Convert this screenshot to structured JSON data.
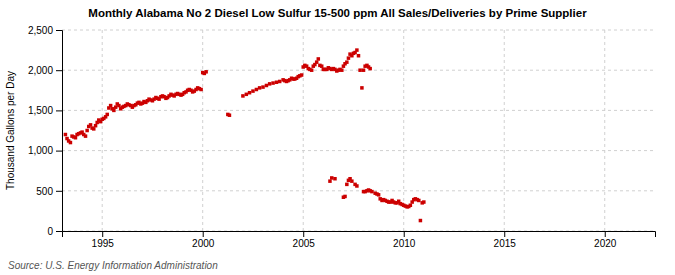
{
  "chart_data": {
    "type": "scatter",
    "title": "Monthly Alabama No 2 Diesel Low Sulfur 15-500 ppm All Sales/Deliveries by Prime Supplier",
    "ylabel": "Thousand Gallons per Day",
    "annotation": "Source: U.S. Energy Information Administration",
    "grid": true,
    "xlim": [
      1993.0,
      2022.5
    ],
    "xticks": [
      1995,
      2000,
      2005,
      2010,
      2015,
      2020
    ],
    "ylim": [
      0,
      2500
    ],
    "yticks": [
      0,
      500,
      {
        "value": 1000,
        "label": "1,000"
      },
      {
        "value": 1500,
        "label": "1,500"
      },
      {
        "value": 2000,
        "label": "2,000"
      },
      {
        "value": 2500,
        "label": "2,500"
      }
    ],
    "series": [
      {
        "color": "#cc0000",
        "marker": "square",
        "x": [
          1993.17,
          1993.25,
          1993.33,
          1993.42,
          1993.5,
          1993.58,
          1993.67,
          1993.75,
          1993.83,
          1993.92,
          1994.0,
          1994.08,
          1994.17,
          1994.25,
          1994.33,
          1994.42,
          1994.5,
          1994.58,
          1994.67,
          1994.75,
          1994.83,
          1994.92,
          1995.0,
          1995.08,
          1995.17,
          1995.25,
          1995.33,
          1995.42,
          1995.5,
          1995.58,
          1995.67,
          1995.75,
          1995.83,
          1995.92,
          1996.0,
          1996.08,
          1996.17,
          1996.25,
          1996.33,
          1996.42,
          1996.5,
          1996.58,
          1996.67,
          1996.75,
          1996.83,
          1996.92,
          1997.0,
          1997.08,
          1997.17,
          1997.25,
          1997.33,
          1997.42,
          1997.5,
          1997.58,
          1997.67,
          1997.75,
          1997.83,
          1997.92,
          1998.0,
          1998.08,
          1998.17,
          1998.25,
          1998.33,
          1998.42,
          1998.5,
          1998.58,
          1998.67,
          1998.75,
          1998.83,
          1998.92,
          1999.0,
          1999.08,
          1999.17,
          1999.25,
          1999.33,
          1999.42,
          1999.5,
          1999.58,
          1999.67,
          1999.75,
          1999.83,
          1999.92,
          2000.0,
          2000.08,
          2000.17,
          2001.25,
          2001.33,
          2002.0,
          2002.17,
          2002.33,
          2002.5,
          2002.67,
          2002.83,
          2003.0,
          2003.17,
          2003.33,
          2003.5,
          2003.67,
          2003.83,
          2004.0,
          2004.08,
          2004.17,
          2004.25,
          2004.33,
          2004.42,
          2004.5,
          2004.58,
          2004.67,
          2004.75,
          2004.83,
          2004.92,
          2005.0,
          2005.08,
          2005.17,
          2005.25,
          2005.33,
          2005.42,
          2005.5,
          2005.58,
          2005.67,
          2005.75,
          2005.83,
          2005.92,
          2006.0,
          2006.08,
          2006.17,
          2006.25,
          2006.33,
          2006.42,
          2006.5,
          2006.58,
          2006.67,
          2006.75,
          2006.83,
          2006.92,
          2007.0,
          2007.08,
          2007.17,
          2007.25,
          2007.33,
          2007.42,
          2007.5,
          2007.58,
          2007.67,
          2007.75,
          2007.83,
          2007.92,
          2008.0,
          2008.08,
          2008.17,
          2008.25,
          2008.33
        ],
        "values": [
          1200,
          1150,
          1120,
          1100,
          1180,
          1170,
          1160,
          1200,
          1210,
          1220,
          1230,
          1200,
          1180,
          1250,
          1300,
          1320,
          1280,
          1270,
          1310,
          1350,
          1380,
          1360,
          1390,
          1400,
          1420,
          1450,
          1530,
          1560,
          1520,
          1500,
          1540,
          1580,
          1560,
          1520,
          1540,
          1550,
          1560,
          1580,
          1570,
          1560,
          1540,
          1560,
          1570,
          1590,
          1600,
          1580,
          1590,
          1610,
          1600,
          1620,
          1640,
          1630,
          1620,
          1640,
          1660,
          1650,
          1640,
          1670,
          1680,
          1670,
          1650,
          1660,
          1680,
          1700,
          1690,
          1680,
          1700,
          1710,
          1700,
          1690,
          1700,
          1720,
          1730,
          1750,
          1760,
          1750,
          1730,
          1740,
          1760,
          1780,
          1770,
          1760,
          1970,
          1960,
          1980,
          1450,
          1440,
          1680,
          1700,
          1720,
          1740,
          1760,
          1780,
          1790,
          1810,
          1830,
          1840,
          1850,
          1860,
          1880,
          1870,
          1860,
          1870,
          1880,
          1900,
          1890,
          1890,
          1900,
          1920,
          1930,
          1940,
          2040,
          2060,
          2050,
          2020,
          2010,
          2000,
          2050,
          2070,
          2100,
          2140,
          2060,
          2050,
          2010,
          2010,
          2010,
          2030,
          2020,
          2010,
          2020,
          2010,
          1990,
          2000,
          2010,
          2000,
          2050,
          2080,
          2100,
          2150,
          2200,
          2180,
          2210,
          2220,
          2250,
          2180,
          2000,
          1780,
          2000,
          2050,
          2060,
          2040,
          2020
        ]
      },
      {
        "color": "#cc0000",
        "marker": "square",
        "x": [
          2006.33,
          2006.42,
          2006.58,
          2007.0,
          2007.08,
          2007.17,
          2007.25,
          2007.33,
          2007.42,
          2007.58,
          2007.67,
          2008.0,
          2008.08,
          2008.17,
          2008.25,
          2008.33,
          2008.42,
          2008.58,
          2008.67,
          2008.75,
          2008.83,
          2008.92,
          2009.0,
          2009.08,
          2009.17,
          2009.25,
          2009.33,
          2009.42,
          2009.5,
          2009.58,
          2009.67,
          2009.75,
          2009.83,
          2009.92,
          2010.0,
          2010.08,
          2010.17,
          2010.25,
          2010.33,
          2010.42,
          2010.5,
          2010.58,
          2010.67,
          2010.75,
          2010.83,
          2010.92,
          2011.0
        ],
        "values": [
          620,
          660,
          650,
          420,
          430,
          580,
          630,
          650,
          620,
          580,
          560,
          490,
          490,
          500,
          510,
          500,
          490,
          470,
          460,
          450,
          400,
          380,
          390,
          380,
          370,
          360,
          360,
          380,
          360,
          350,
          350,
          370,
          340,
          330,
          320,
          310,
          300,
          305,
          320,
          360,
          390,
          400,
          390,
          380,
          130,
          350,
          360
        ]
      }
    ]
  }
}
